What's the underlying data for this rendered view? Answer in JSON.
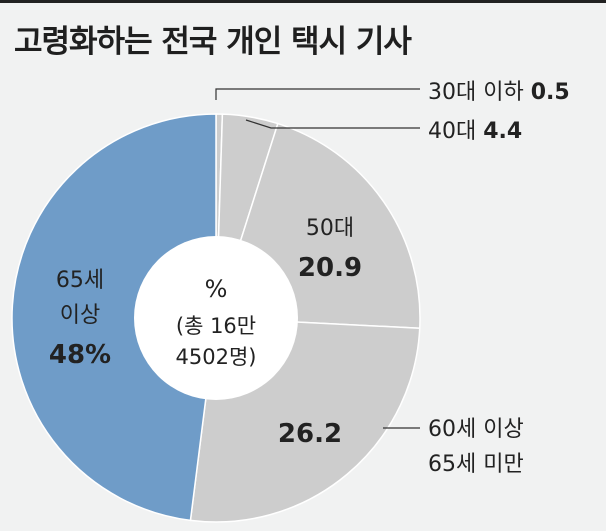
{
  "title": "고령화하는 전국 개인 택시 기사",
  "colors": {
    "background": "#f1f2f2",
    "highlight": "#6f9cc8",
    "gray": "#cdcdcd",
    "divider": "#ffffff",
    "center": "#ffffff",
    "text": "#222222"
  },
  "chart_data": {
    "type": "pie",
    "unit": "%",
    "center_label": {
      "unit": "%",
      "line1": "(총 16만",
      "line2": "4502명)"
    },
    "categories": [
      "30대 이하",
      "40대",
      "50대",
      "60세 이상 65세 미만",
      "65세 이상"
    ],
    "values": [
      0.5,
      4.4,
      20.9,
      26.2,
      48
    ],
    "slices": [
      {
        "label_line1": "30대 이하",
        "label_line2": "",
        "value_text": "0.5",
        "color": "#cdcdcd"
      },
      {
        "label_line1": "40대",
        "label_line2": "",
        "value_text": "4.4",
        "color": "#cdcdcd"
      },
      {
        "label_line1": "50대",
        "label_line2": "",
        "value_text": "20.9",
        "color": "#cdcdcd"
      },
      {
        "label_line1": "60세 이상",
        "label_line2": "65세 미만",
        "value_text": "26.2",
        "color": "#cdcdcd"
      },
      {
        "label_line1": "65세",
        "label_line2": "이상",
        "value_text": "48%",
        "color": "#6f9cc8"
      }
    ]
  }
}
